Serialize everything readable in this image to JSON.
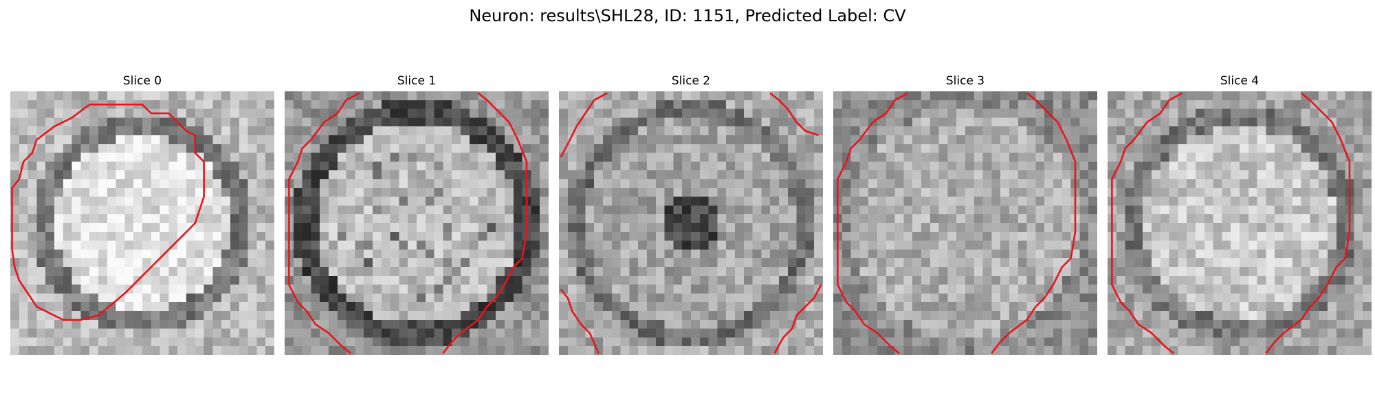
{
  "figure": {
    "title": "Neuron: results\\SHL28, ID: 1151, Predicted Label: CV"
  },
  "panels": [
    {
      "title": "Slice 0",
      "pattern": "bright-core",
      "contour": "closed"
    },
    {
      "title": "Slice 1",
      "pattern": "ring-dark",
      "contour": "open-sides"
    },
    {
      "title": "Slice 2",
      "pattern": "dark-center",
      "contour": "corners"
    },
    {
      "title": "Slice 3",
      "pattern": "mottled",
      "contour": "open-sides"
    },
    {
      "title": "Slice 4",
      "pattern": "ring-light",
      "contour": "open-sides"
    }
  ],
  "colors": {
    "contour": "#e8141c",
    "background": "#ffffff"
  }
}
